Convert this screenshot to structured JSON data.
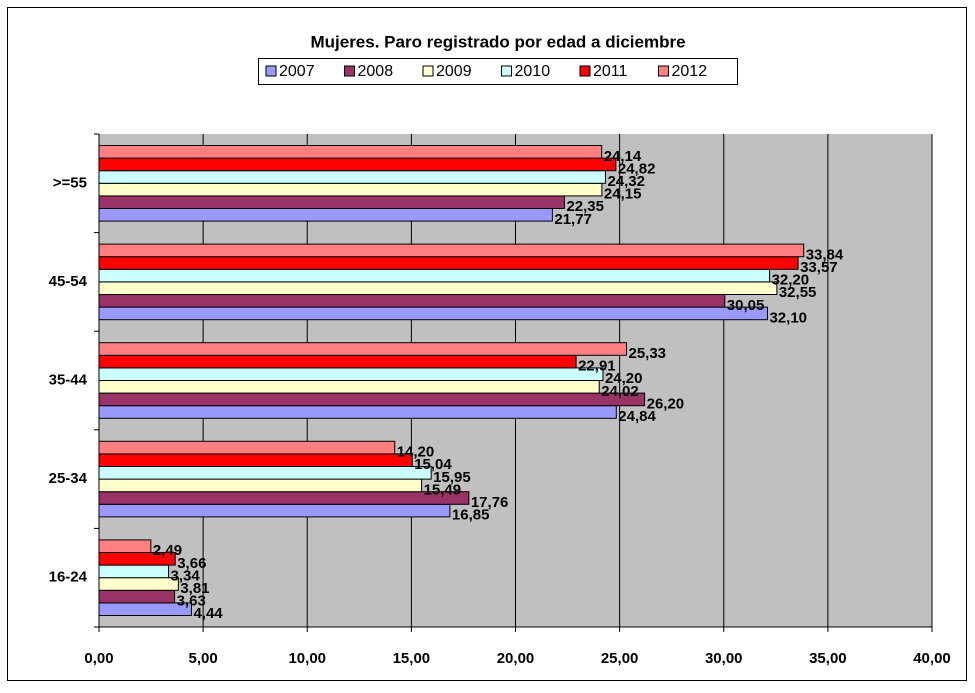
{
  "chart_data": {
    "type": "hbar",
    "title": "Mujeres. Paro registrado por edad a diciembre",
    "categories": [
      "16-24",
      "25-34",
      "35-44",
      "45-54",
      ">=55"
    ],
    "series": [
      {
        "name": "2007",
        "color": "#9999ff",
        "values": [
          4.44,
          16.85,
          24.84,
          32.1,
          21.77
        ],
        "value_labels": [
          "4,44",
          "16,85",
          "24,84",
          "32,10",
          "21,77"
        ]
      },
      {
        "name": "2008",
        "color": "#993366",
        "values": [
          3.63,
          17.76,
          26.2,
          30.05,
          22.35
        ],
        "value_labels": [
          "3,63",
          "17,76",
          "26,20",
          "30,05",
          "22,35"
        ]
      },
      {
        "name": "2009",
        "color": "#ffffcc",
        "values": [
          3.81,
          15.49,
          24.02,
          32.55,
          24.15
        ],
        "value_labels": [
          "3,81",
          "15,49",
          "24,02",
          "32,55",
          "24,15"
        ]
      },
      {
        "name": "2010",
        "color": "#ccffff",
        "values": [
          3.34,
          15.95,
          24.2,
          32.2,
          24.32
        ],
        "value_labels": [
          "3,34",
          "15,95",
          "24,20",
          "32,20",
          "24,32"
        ]
      },
      {
        "name": "2011",
        "color": "#ff0000",
        "values": [
          3.66,
          15.04,
          22.91,
          33.57,
          24.82
        ],
        "value_labels": [
          "3,66",
          "15,04",
          "22,91",
          "33,57",
          "24,82"
        ]
      },
      {
        "name": "2012",
        "color": "#ff8080",
        "values": [
          2.49,
          14.2,
          25.33,
          33.84,
          24.14
        ],
        "value_labels": [
          "2,49",
          "14,20",
          "25,33",
          "33,84",
          "24,14"
        ]
      }
    ],
    "xlim": [
      0,
      40
    ],
    "xticks": [
      {
        "value": 0,
        "label": "0,00"
      },
      {
        "value": 5,
        "label": "5,00"
      },
      {
        "value": 10,
        "label": "10,00"
      },
      {
        "value": 15,
        "label": "15,00"
      },
      {
        "value": 20,
        "label": "20,00"
      },
      {
        "value": 25,
        "label": "25,00"
      },
      {
        "value": 30,
        "label": "30,00"
      },
      {
        "value": 35,
        "label": "35,00"
      },
      {
        "value": 40,
        "label": "40,00"
      }
    ],
    "grid": true,
    "plot_background": "#c0c0c0"
  }
}
